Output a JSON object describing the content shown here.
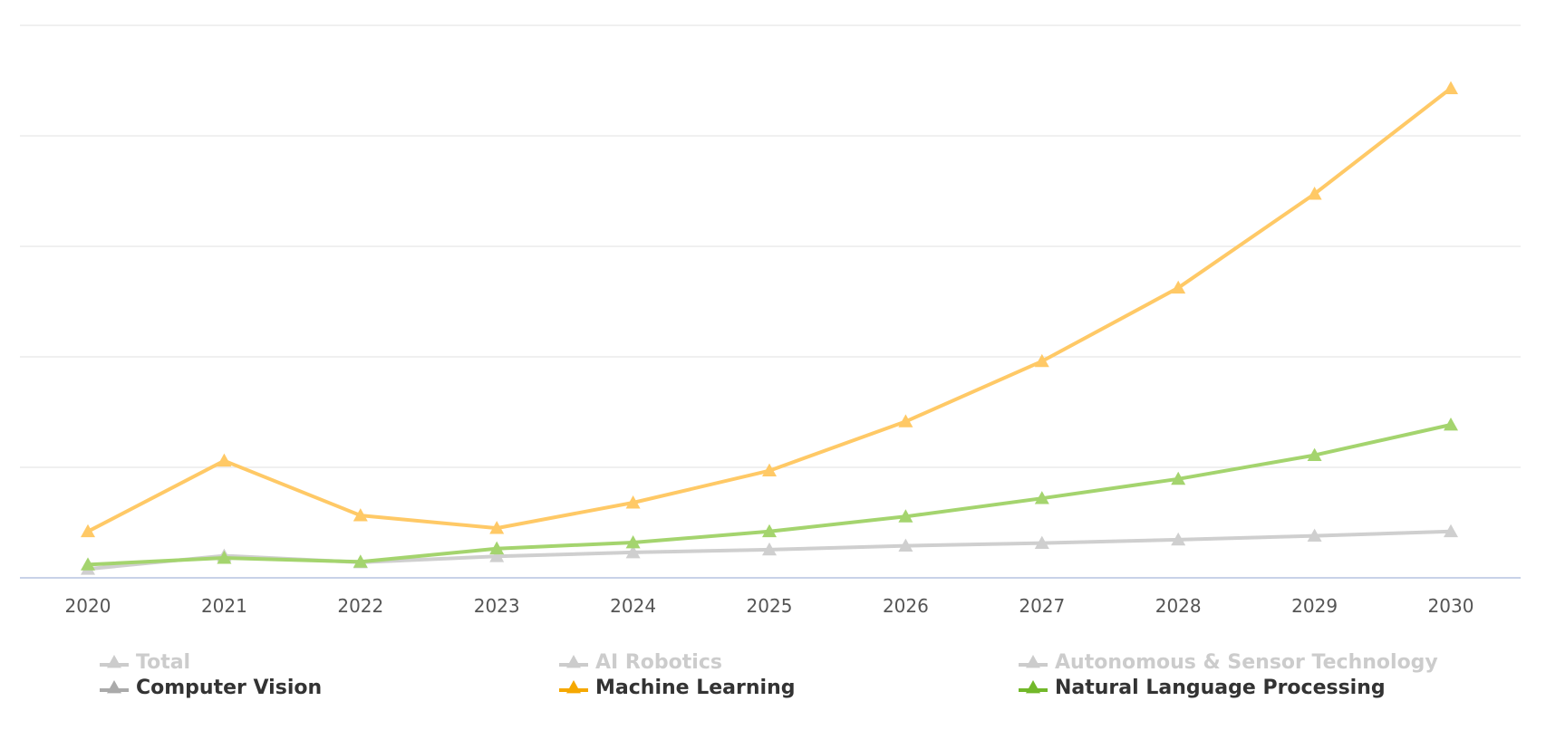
{
  "chart_data": {
    "type": "line",
    "title": "",
    "xlabel": "",
    "ylabel": "",
    "x": [
      "2020",
      "2021",
      "2022",
      "2023",
      "2024",
      "2025",
      "2026",
      "2027",
      "2028",
      "2029",
      "2030"
    ],
    "ylim": [
      0,
      100
    ],
    "grid": true,
    "legend_position": "bottom",
    "series": [
      {
        "name": "Total",
        "visible": false,
        "color": "#cccccc",
        "values": [
          null,
          null,
          null,
          null,
          null,
          null,
          null,
          null,
          null,
          null,
          null
        ]
      },
      {
        "name": "AI Robotics",
        "visible": false,
        "color": "#cccccc",
        "values": [
          null,
          null,
          null,
          null,
          null,
          null,
          null,
          null,
          null,
          null,
          null
        ]
      },
      {
        "name": "Autonomous & Sensor Technology",
        "visible": false,
        "color": "#cccccc",
        "values": [
          null,
          null,
          null,
          null,
          null,
          null,
          null,
          null,
          null,
          null,
          null
        ]
      },
      {
        "name": "Computer Vision",
        "visible": true,
        "color": "#cfcfcf",
        "values": [
          1.6,
          4.0,
          2.8,
          3.9,
          4.6,
          5.1,
          5.8,
          6.3,
          6.9,
          7.6,
          8.4
        ]
      },
      {
        "name": "Machine Learning",
        "visible": true,
        "color": "#ffc966",
        "values": [
          8.4,
          21.2,
          11.3,
          9.0,
          13.6,
          19.4,
          28.3,
          39.2,
          52.5,
          69.5,
          88.6
        ]
      },
      {
        "name": "Natural Language Processing",
        "visible": true,
        "color": "#a4d46e",
        "values": [
          2.4,
          3.6,
          2.9,
          5.3,
          6.4,
          8.4,
          11.1,
          14.4,
          17.9,
          22.2,
          27.7
        ]
      }
    ]
  },
  "legend_arrow_color_ml": "#f5a800",
  "legend_arrow_color_nlp": "#72b82a",
  "legend_arrow_color_cv": "#aaaaaa"
}
